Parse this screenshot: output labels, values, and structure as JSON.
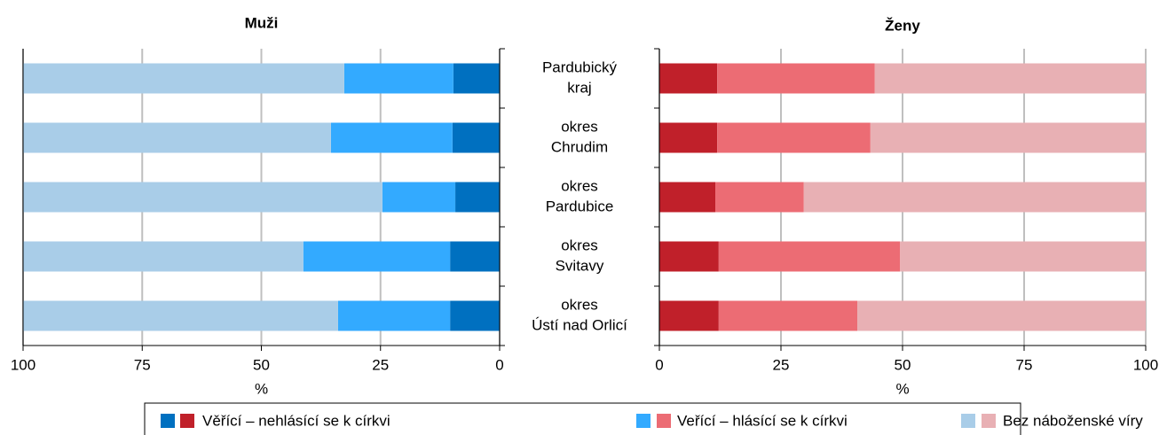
{
  "categories": [
    "Pardubický kraj",
    "okres Chrudim",
    "okres Pardubice",
    "okres Svitavy",
    "okres Ústí nad Orlicí"
  ],
  "legend": [
    "Věřící – nehlásící se k církvi",
    "Veřící – hlásící se k církvi",
    "Bez náboženské víry"
  ],
  "chart_data": [
    {
      "type": "stacked_bar_horizontal",
      "title": "Muži",
      "xlabel": "%",
      "reversed": true,
      "xlim": [
        0,
        100
      ],
      "xticks": [
        0,
        25,
        50,
        75,
        100
      ],
      "grid": true,
      "series": [
        {
          "color": "#0070c0",
          "values": [
            9.7,
            9.9,
            9.3,
            10.4,
            10.4
          ]
        },
        {
          "color": "#33aaff",
          "values": [
            22.9,
            25.5,
            15.3,
            30.8,
            23.5
          ]
        },
        {
          "color": "#a9cde8",
          "values": [
            67.4,
            64.6,
            75.4,
            58.8,
            66.1
          ]
        }
      ]
    },
    {
      "type": "stacked_bar_horizontal",
      "title": "Ženy",
      "xlabel": "%",
      "reversed": false,
      "xlim": [
        0,
        100
      ],
      "xticks": [
        0,
        25,
        50,
        75,
        100
      ],
      "grid": true,
      "series": [
        {
          "color": "#c0202a",
          "values": [
            11.9,
            11.9,
            11.5,
            12.2,
            12.2
          ]
        },
        {
          "color": "#ec6c74",
          "values": [
            32.4,
            31.5,
            18.2,
            37.3,
            28.5
          ]
        },
        {
          "color": "#e8b0b4",
          "values": [
            55.7,
            56.6,
            70.3,
            50.5,
            59.3
          ]
        }
      ]
    }
  ]
}
